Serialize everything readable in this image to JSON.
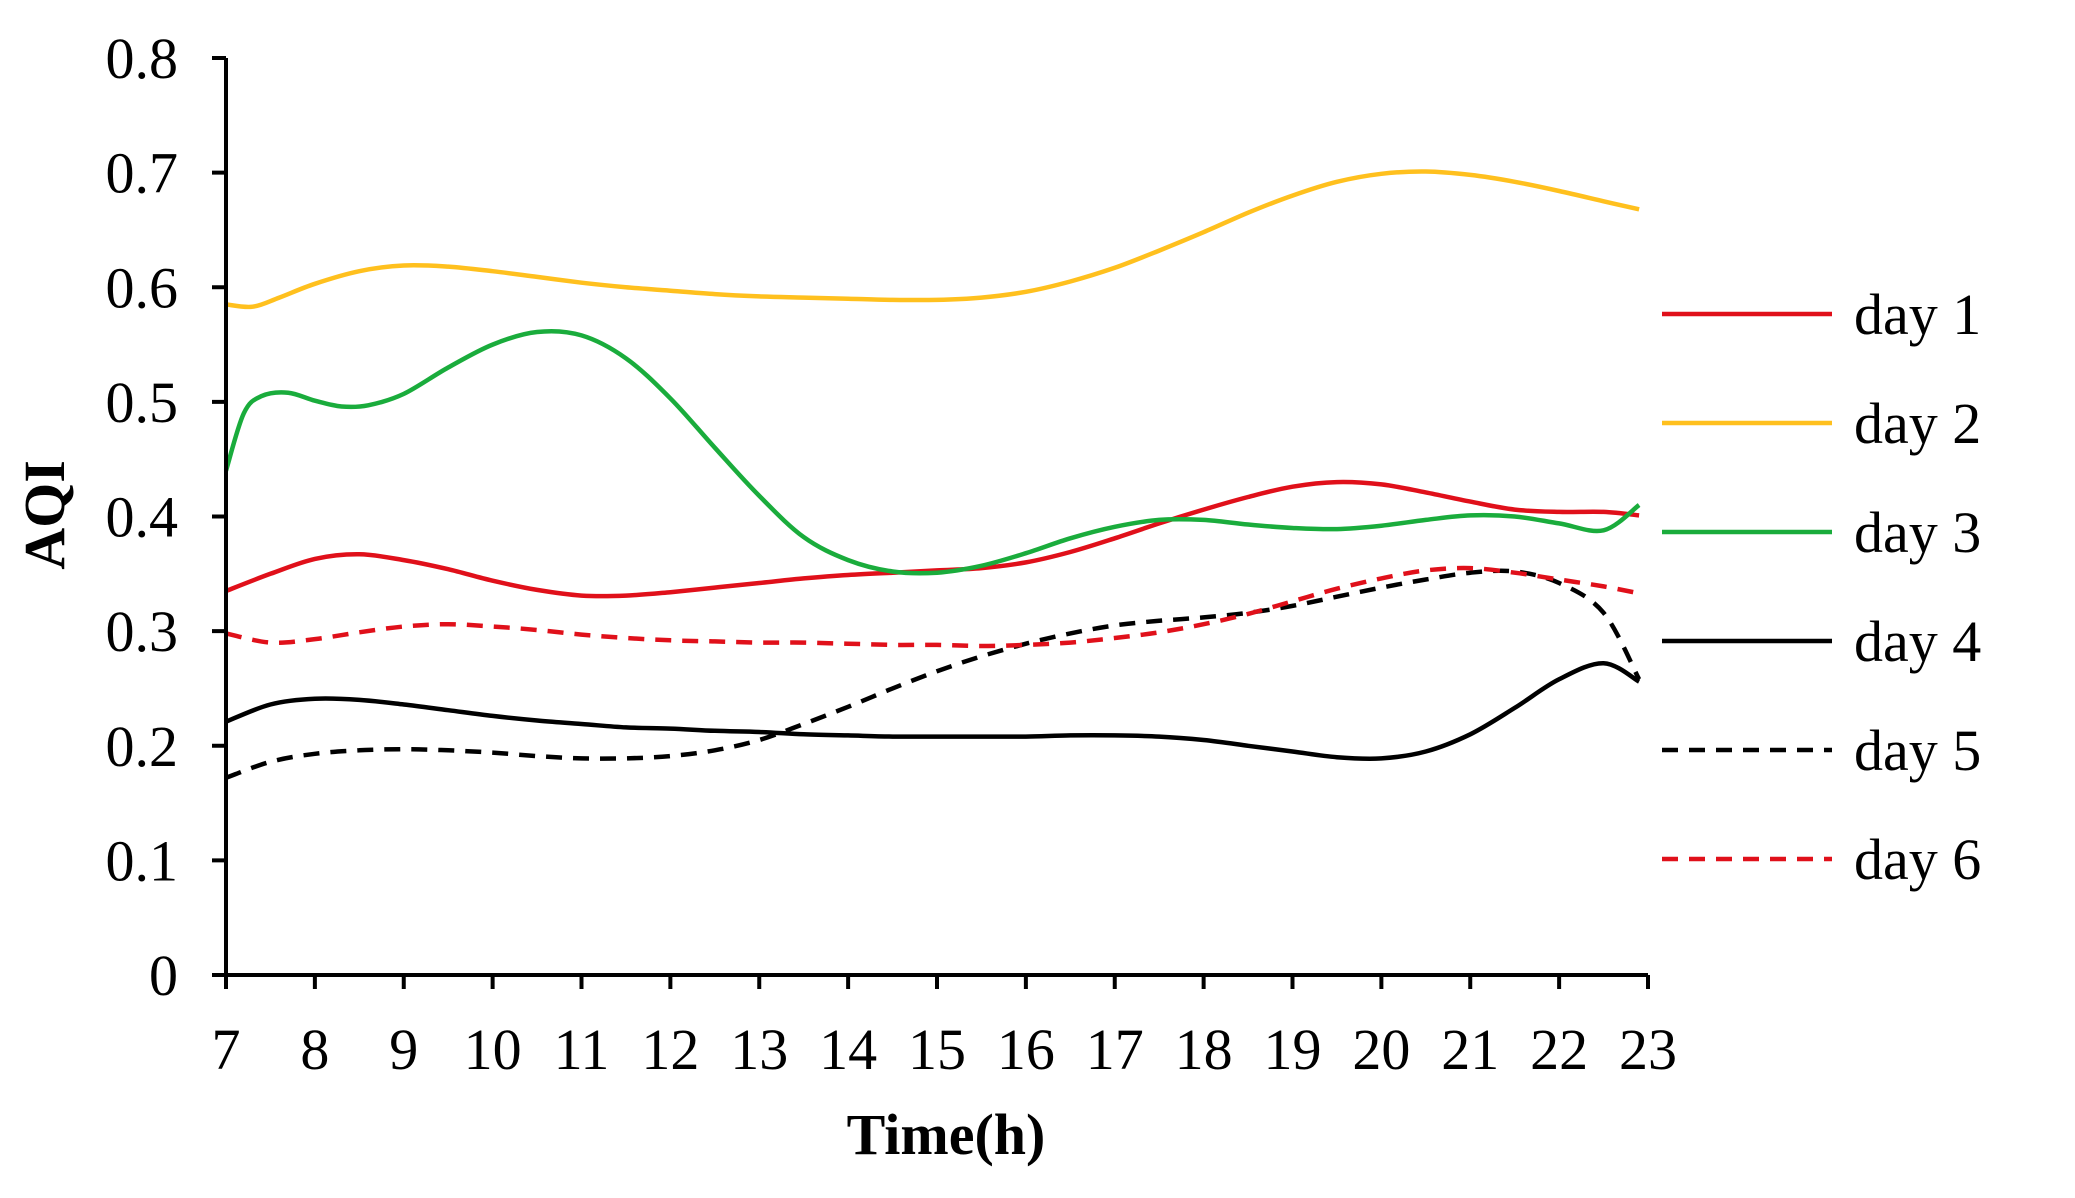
{
  "chart_data": {
    "type": "line",
    "title": "",
    "xlabel": "Time(h)",
    "ylabel": "AQI",
    "xlim": [
      7,
      23
    ],
    "ylim": [
      0,
      0.8
    ],
    "xticks": [
      7,
      8,
      9,
      10,
      11,
      12,
      13,
      14,
      15,
      16,
      17,
      18,
      19,
      20,
      21,
      22,
      23
    ],
    "x_tick_labels": [
      "7",
      "8",
      "9",
      "10",
      "11",
      "12",
      "13",
      "14",
      "15",
      "16",
      "17",
      "18",
      "19",
      "20",
      "21",
      "22",
      "23"
    ],
    "yticks": [
      0,
      0.1,
      0.2,
      0.3,
      0.4,
      0.5,
      0.6,
      0.7,
      0.8
    ],
    "y_tick_labels": [
      "0",
      "0.1",
      "0.2",
      "0.3",
      "0.4",
      "0.5",
      "0.6",
      "0.7",
      "0.8"
    ],
    "grid": false,
    "legend_position": "right",
    "series": [
      {
        "name": "day 1",
        "color": "#e0101a",
        "dashed": false,
        "x": [
          7,
          7.5,
          8,
          8.5,
          9,
          9.5,
          10,
          10.5,
          11,
          11.5,
          12,
          12.5,
          13,
          13.5,
          14,
          14.5,
          15,
          15.5,
          16,
          16.5,
          17,
          17.5,
          18,
          18.5,
          19,
          19.5,
          20,
          20.5,
          21,
          21.5,
          22,
          22.5,
          22.9
        ],
        "values": [
          0.335,
          0.35,
          0.363,
          0.367,
          0.362,
          0.354,
          0.344,
          0.336,
          0.331,
          0.331,
          0.334,
          0.338,
          0.342,
          0.346,
          0.349,
          0.351,
          0.353,
          0.355,
          0.36,
          0.369,
          0.381,
          0.394,
          0.406,
          0.417,
          0.426,
          0.43,
          0.428,
          0.421,
          0.413,
          0.406,
          0.404,
          0.404,
          0.401
        ]
      },
      {
        "name": "day 2",
        "color": "#ffc01e",
        "dashed": false,
        "x": [
          7,
          7.3,
          7.6,
          8,
          8.5,
          9,
          9.5,
          10,
          10.5,
          11,
          11.5,
          12,
          12.5,
          13,
          13.5,
          14,
          14.5,
          15,
          15.5,
          16,
          16.5,
          17,
          17.5,
          18,
          18.5,
          19,
          19.5,
          20,
          20.5,
          21,
          21.5,
          22,
          22.5,
          22.9
        ],
        "values": [
          0.585,
          0.583,
          0.591,
          0.603,
          0.614,
          0.619,
          0.618,
          0.614,
          0.609,
          0.604,
          0.6,
          0.597,
          0.594,
          0.592,
          0.591,
          0.59,
          0.589,
          0.589,
          0.591,
          0.596,
          0.605,
          0.617,
          0.632,
          0.648,
          0.665,
          0.68,
          0.692,
          0.699,
          0.701,
          0.698,
          0.692,
          0.684,
          0.675,
          0.668
        ]
      },
      {
        "name": "day 3",
        "color": "#1aac3c",
        "dashed": false,
        "x": [
          7,
          7.2,
          7.4,
          7.7,
          8,
          8.3,
          8.6,
          9,
          9.5,
          10,
          10.5,
          11,
          11.5,
          12,
          12.5,
          13,
          13.5,
          14,
          14.5,
          15,
          15.5,
          16,
          16.5,
          17,
          17.5,
          18,
          18.5,
          19,
          19.5,
          20,
          20.5,
          21,
          21.5,
          22,
          22.5,
          22.9
        ],
        "values": [
          0.44,
          0.49,
          0.505,
          0.508,
          0.501,
          0.496,
          0.497,
          0.507,
          0.53,
          0.55,
          0.561,
          0.558,
          0.538,
          0.503,
          0.46,
          0.418,
          0.382,
          0.362,
          0.352,
          0.351,
          0.357,
          0.368,
          0.381,
          0.391,
          0.397,
          0.397,
          0.393,
          0.39,
          0.389,
          0.392,
          0.397,
          0.401,
          0.4,
          0.394,
          0.388,
          0.41
        ]
      },
      {
        "name": "day 4",
        "color": "#000000",
        "dashed": false,
        "x": [
          7,
          7.5,
          8,
          8.5,
          9,
          9.5,
          10,
          10.5,
          11,
          11.5,
          12,
          12.5,
          13,
          13.5,
          14,
          14.5,
          15,
          15.5,
          16,
          16.5,
          17,
          17.5,
          18,
          18.5,
          19,
          19.5,
          20,
          20.5,
          21,
          21.5,
          22,
          22.5,
          22.9
        ],
        "values": [
          0.221,
          0.236,
          0.241,
          0.24,
          0.236,
          0.231,
          0.226,
          0.222,
          0.219,
          0.216,
          0.215,
          0.213,
          0.212,
          0.21,
          0.209,
          0.208,
          0.208,
          0.208,
          0.208,
          0.209,
          0.209,
          0.208,
          0.205,
          0.2,
          0.195,
          0.19,
          0.189,
          0.195,
          0.21,
          0.233,
          0.258,
          0.272,
          0.256
        ]
      },
      {
        "name": "day 5",
        "color": "#000000",
        "dashed": true,
        "x": [
          7,
          7.5,
          8,
          8.5,
          9,
          9.5,
          10,
          10.5,
          11,
          11.5,
          12,
          12.5,
          13,
          13.5,
          14,
          14.5,
          15,
          15.5,
          16,
          16.5,
          17,
          17.5,
          18,
          18.5,
          19,
          19.5,
          20,
          20.5,
          21,
          21.5,
          22,
          22.5,
          22.9
        ],
        "values": [
          0.172,
          0.186,
          0.193,
          0.196,
          0.197,
          0.196,
          0.194,
          0.191,
          0.189,
          0.189,
          0.191,
          0.196,
          0.205,
          0.219,
          0.234,
          0.25,
          0.265,
          0.278,
          0.289,
          0.298,
          0.305,
          0.309,
          0.312,
          0.316,
          0.322,
          0.33,
          0.338,
          0.345,
          0.351,
          0.352,
          0.342,
          0.316,
          0.258
        ]
      },
      {
        "name": "day 6",
        "color": "#e0101a",
        "dashed": true,
        "x": [
          7,
          7.5,
          8,
          8.5,
          9,
          9.5,
          10,
          10.5,
          11,
          11.5,
          12,
          12.5,
          13,
          13.5,
          14,
          14.5,
          15,
          15.5,
          16,
          16.5,
          17,
          17.5,
          18,
          18.5,
          19,
          19.5,
          20,
          20.5,
          21,
          21.5,
          22,
          22.5,
          22.9
        ],
        "values": [
          0.298,
          0.29,
          0.293,
          0.299,
          0.304,
          0.306,
          0.304,
          0.301,
          0.297,
          0.294,
          0.292,
          0.291,
          0.29,
          0.29,
          0.289,
          0.288,
          0.288,
          0.287,
          0.288,
          0.29,
          0.294,
          0.299,
          0.306,
          0.315,
          0.326,
          0.337,
          0.346,
          0.353,
          0.355,
          0.351,
          0.345,
          0.339,
          0.333
        ]
      }
    ]
  }
}
